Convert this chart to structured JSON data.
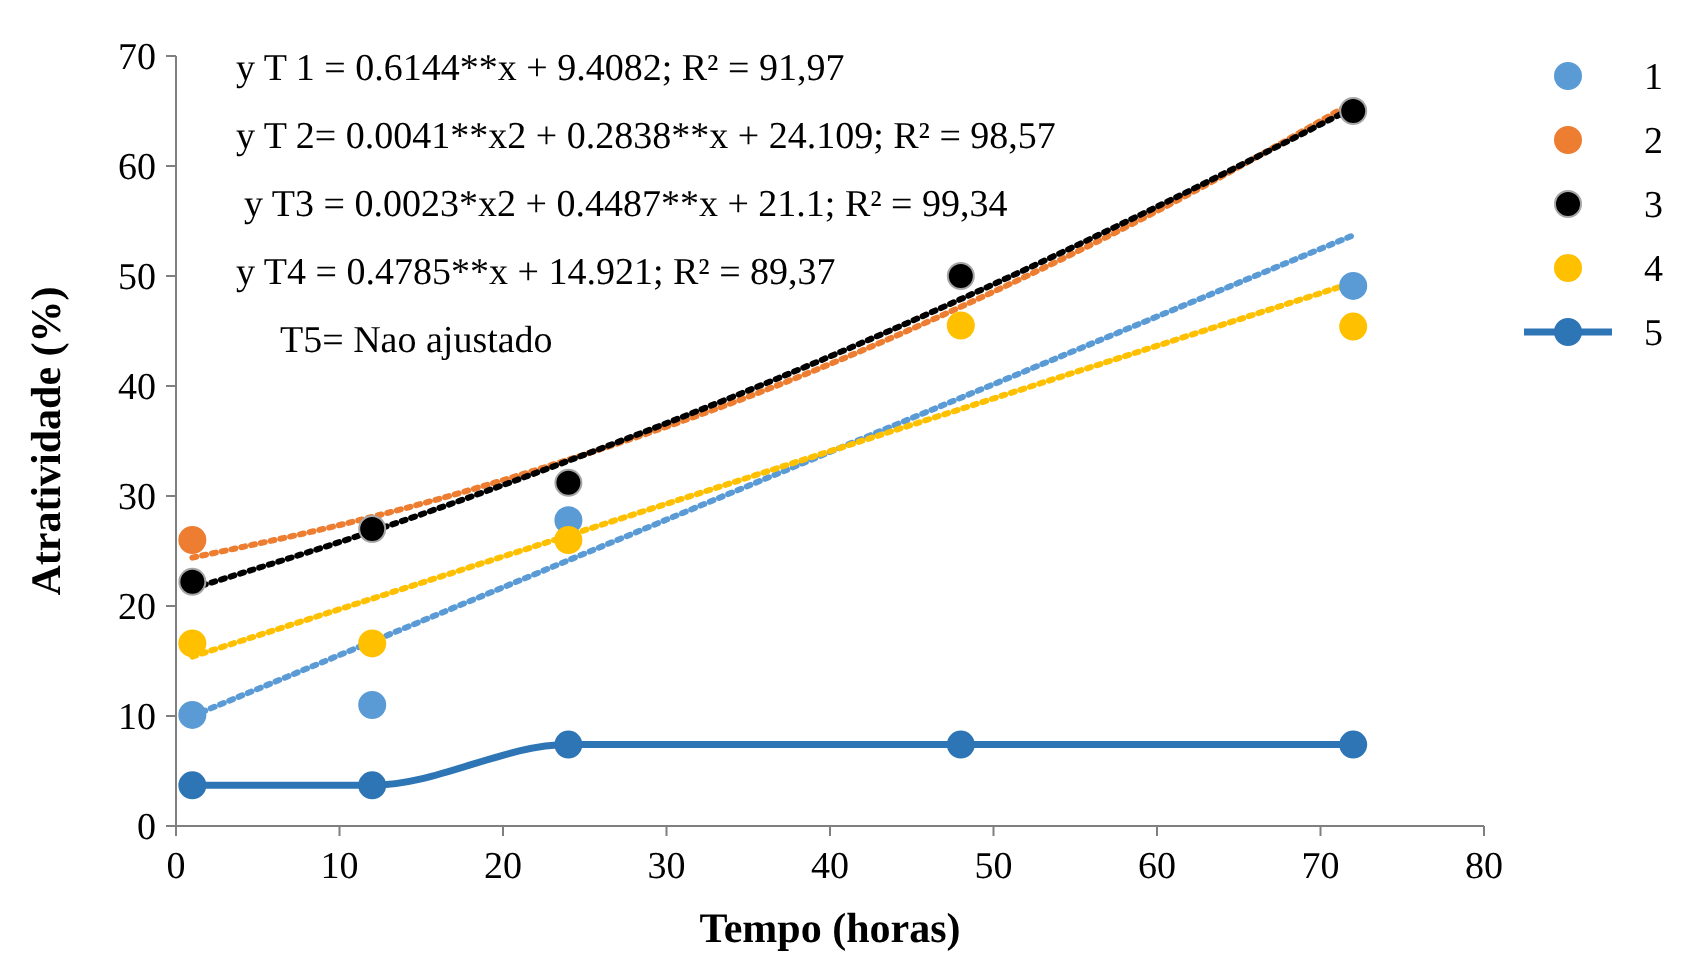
{
  "chart_data": {
    "type": "scatter",
    "xlabel": "Tempo (horas)",
    "ylabel": "Atratividade (%)",
    "xlim": [
      0,
      80
    ],
    "xticks": [
      0,
      10,
      20,
      30,
      40,
      50,
      60,
      70,
      80
    ],
    "ylim": [
      0,
      70
    ],
    "yticks": [
      0,
      10,
      20,
      30,
      40,
      50,
      60,
      70
    ],
    "grid": false,
    "legend": "right",
    "marker": "circle",
    "x": [
      1,
      12,
      24,
      48,
      72
    ],
    "series": [
      {
        "name": "1",
        "color": "#5b9bd5",
        "values": [
          10.1,
          11.0,
          27.8,
          null,
          49.1
        ]
      },
      {
        "name": "2",
        "color": "#ed7d31",
        "values": [
          26.0,
          null,
          null,
          null,
          null
        ]
      },
      {
        "name": "3",
        "color": "#000000",
        "values": [
          22.2,
          27.0,
          31.2,
          50.0,
          65.0
        ]
      },
      {
        "name": "4",
        "color": "#ffc000",
        "values": [
          16.6,
          16.6,
          26.0,
          45.5,
          45.4
        ]
      },
      {
        "name": "5",
        "color": "#2e75b6",
        "type": "line",
        "values": [
          3.7,
          3.7,
          7.4,
          7.4,
          7.4
        ]
      },
      {
        "type": "line",
        "color": "#5b9bd5",
        "line_style": "dotted",
        "marker": "none",
        "x": [
          1,
          72
        ],
        "values": [
          10.0,
          53.7
        ]
      },
      {
        "type": "line",
        "color": "#ed7d31",
        "line_style": "dotted",
        "marker": "none",
        "x": [
          1,
          12,
          24,
          36,
          48,
          60,
          72
        ],
        "values": [
          24.4,
          28.1,
          33.3,
          39.6,
          47.2,
          55.9,
          65.8
        ]
      },
      {
        "type": "line",
        "color": "#000000",
        "line_style": "dotted",
        "marker": "none",
        "x": [
          1,
          12,
          24,
          36,
          48,
          60,
          72
        ],
        "values": [
          21.6,
          26.8,
          33.2,
          40.2,
          47.9,
          56.3,
          65.3
        ]
      },
      {
        "type": "line",
        "color": "#ffc000",
        "line_style": "dotted",
        "marker": "none",
        "x": [
          1,
          72
        ],
        "values": [
          15.4,
          49.4
        ]
      }
    ],
    "annotations": [
      "y T 1 = 0.6144**x + 9.4082; R² = 91,97",
      "y T 2= 0.0041**x2 + 0.2838**x + 24.109; R² = 98,57",
      "y T3 = 0.0023*x2 + 0.4487**x + 21.1; R² = 99,34",
      "y T4 = 0.4785**x + 14.921; R² = 89,37",
      "T5= Nao ajustado"
    ]
  }
}
